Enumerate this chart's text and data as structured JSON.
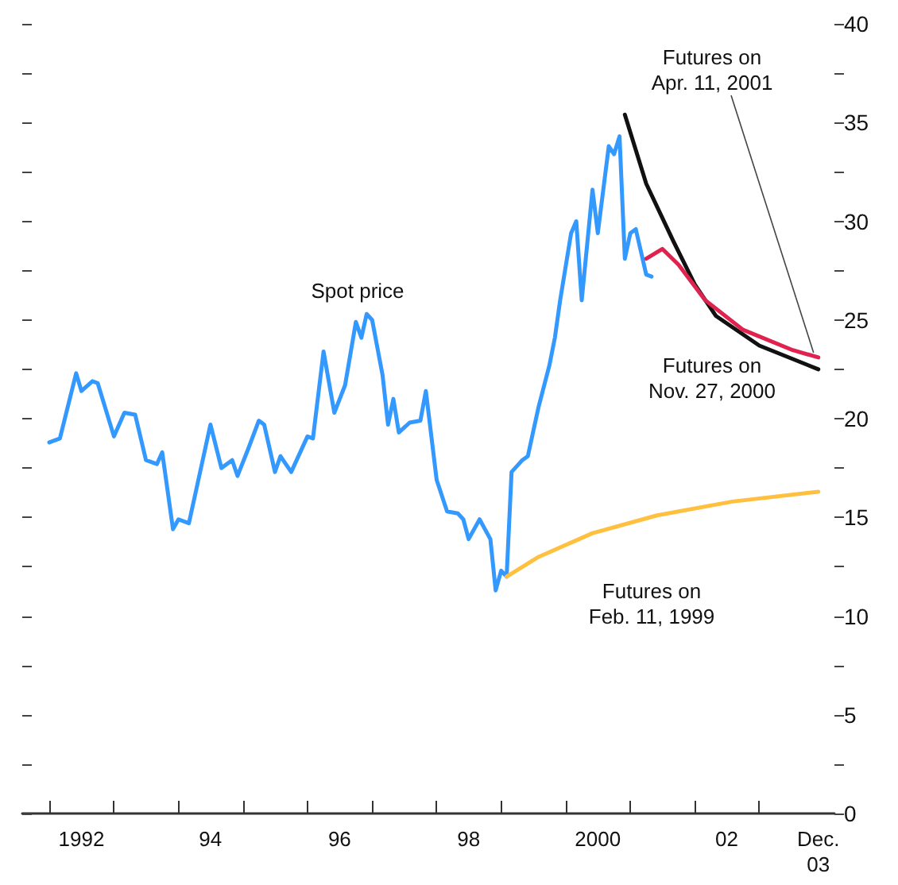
{
  "chart_data": {
    "type": "line",
    "xlim": [
      "1991-08",
      "2004-03"
    ],
    "xticks": [
      {
        "value": "1992-01",
        "label": null
      },
      {
        "value": "1993-01",
        "label": null
      },
      {
        "value": "1994-01",
        "label": null
      },
      {
        "value": "1995-01",
        "label": null
      },
      {
        "value": "1996-01",
        "label": null
      },
      {
        "value": "1997-01",
        "label": null
      },
      {
        "value": "1998-01",
        "label": null
      },
      {
        "value": "1999-01",
        "label": null
      },
      {
        "value": "2000-01",
        "label": null
      },
      {
        "value": "2001-01",
        "label": null
      },
      {
        "value": "2002-01",
        "label": null
      },
      {
        "value": "2003-01",
        "label": null
      },
      {
        "value": "1992-07",
        "label": "1992"
      },
      {
        "value": "1994-07",
        "label": "94"
      },
      {
        "value": "1996-07",
        "label": "96"
      },
      {
        "value": "1998-07",
        "label": "98"
      },
      {
        "value": "2000-07",
        "label": "2000"
      },
      {
        "value": "2002-07",
        "label": "02"
      },
      {
        "value": "2003-12",
        "label": "Dec.\n03"
      }
    ],
    "ylim": [
      0,
      40
    ],
    "yticks": [
      0,
      {
        "value": 2.5,
        "label": null
      },
      5,
      {
        "value": 7.5,
        "label": null
      },
      10,
      {
        "value": 12.5,
        "label": null
      },
      15,
      {
        "value": 17.5,
        "label": null
      },
      20,
      {
        "value": 22.5,
        "label": null
      },
      25,
      {
        "value": 27.5,
        "label": null
      },
      30,
      {
        "value": 32.5,
        "label": null
      },
      35,
      {
        "value": 37.5,
        "label": null
      },
      40
    ],
    "grid": false,
    "marker": "none",
    "line_style": "solid",
    "series": [
      {
        "color": "#3399ff",
        "x": [
          "1992-01",
          "1992-03",
          "1992-06",
          "1992-07",
          "1992-09",
          "1992-10",
          "1993-01",
          "1993-03",
          "1993-05",
          "1993-07",
          "1993-09",
          "1993-10",
          "1993-12",
          "1994-01",
          "1994-03",
          "1994-07",
          "1994-09",
          "1994-11",
          "1994-12",
          "1995-02",
          "1995-04",
          "1995-05",
          "1995-07",
          "1995-08",
          "1995-10",
          "1996-01",
          "1996-02",
          "1996-04",
          "1996-06",
          "1996-08",
          "1996-10",
          "1996-11",
          "1996-12",
          "1997-01",
          "1997-03",
          "1997-04",
          "1997-05",
          "1997-06",
          "1997-08",
          "1997-10",
          "1997-11",
          "1998-01",
          "1998-03",
          "1998-05",
          "1998-06",
          "1998-07",
          "1998-08",
          "1998-09",
          "1998-11",
          "1998-12",
          "1999-01",
          "1999-02",
          "1999-03",
          "1999-05",
          "1999-06",
          "1999-08",
          "1999-10",
          "1999-11",
          "1999-12",
          "2000-02",
          "2000-03",
          "2000-04",
          "2000-06",
          "2000-07",
          "2000-09",
          "2000-10",
          "2000-11",
          "2000-12",
          "2001-01",
          "2001-02",
          "2001-04",
          "2001-05"
        ],
        "values": [
          18.8,
          19.0,
          22.3,
          21.4,
          21.9,
          21.8,
          19.1,
          20.3,
          20.2,
          17.9,
          17.7,
          18.3,
          14.4,
          14.9,
          14.7,
          19.7,
          17.5,
          17.9,
          17.1,
          18.5,
          19.9,
          19.7,
          17.3,
          18.1,
          17.3,
          19.1,
          19.0,
          23.4,
          20.3,
          21.7,
          24.9,
          24.1,
          25.3,
          25.0,
          22.2,
          19.7,
          21.0,
          19.3,
          19.8,
          19.9,
          21.4,
          16.9,
          15.3,
          15.2,
          14.9,
          13.9,
          14.4,
          14.9,
          13.9,
          11.3,
          12.3,
          12.0,
          17.3,
          17.9,
          18.1,
          20.6,
          22.7,
          24.1,
          26.0,
          29.4,
          30.0,
          26.0,
          31.6,
          29.4,
          33.8,
          33.4,
          34.3,
          28.1,
          29.4,
          29.6,
          27.3,
          27.2
        ]
      },
      {
        "color": "#ffc040",
        "x": [
          "1999-02",
          "1999-08",
          "2000-06",
          "2001-06",
          "2002-08",
          "2003-12"
        ],
        "values": [
          12.0,
          13.0,
          14.2,
          15.1,
          15.8,
          16.3
        ]
      },
      {
        "color": "#111111",
        "x": [
          "2000-12",
          "2001-04",
          "2001-09",
          "2002-01",
          "2002-05",
          "2003-01",
          "2003-12"
        ],
        "values": [
          35.4,
          31.9,
          29.0,
          26.8,
          25.2,
          23.7,
          22.5
        ]
      },
      {
        "color": "#e0234e",
        "x": [
          "2001-04",
          "2001-07",
          "2001-10",
          "2002-03",
          "2002-10",
          "2003-07",
          "2003-12"
        ],
        "values": [
          28.1,
          28.6,
          27.8,
          26.0,
          24.5,
          23.5,
          23.1
        ]
      }
    ],
    "annotations": [
      "Spot price",
      {
        "text": "Futures on\nApr. 11, 2001",
        "x": "2003-12",
        "y": 23.1
      },
      "Futures on\nNov. 27, 2000",
      "Futures on\nFeb. 11, 1999"
    ]
  }
}
